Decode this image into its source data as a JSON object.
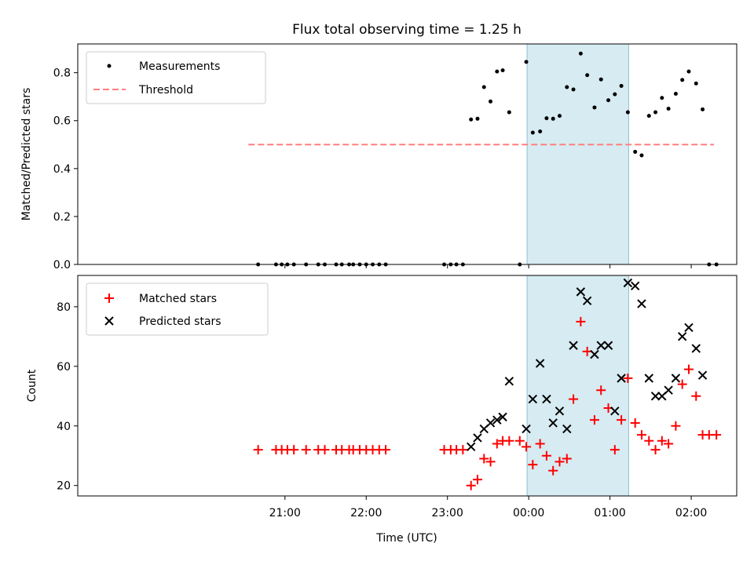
{
  "title": "Flux total observing time = 1.25 h",
  "colors": {
    "measurement": "#000000",
    "threshold": "#ff7f7f",
    "matched": "#ff0000",
    "predicted": "#000000",
    "span": "#add8e6"
  },
  "chart_data": [
    {
      "type": "scatter",
      "ylabel": "Matched/Predicted stars",
      "ylim": [
        0,
        0.92
      ],
      "xlim": [
        -5.55,
        2.56
      ],
      "yticks": [
        0.0,
        0.2,
        0.4,
        0.6,
        0.8
      ],
      "ytick_labels": [
        "0.0",
        "0.2",
        "0.4",
        "0.6",
        "0.8"
      ],
      "legend": {
        "placement": "upper-left",
        "entries": [
          "Measurements",
          "Threshold"
        ]
      },
      "highlight_span": [
        -0.02,
        1.23
      ],
      "threshold": {
        "value": 0.5,
        "x": [
          -3.45,
          2.28
        ]
      },
      "series": [
        {
          "name": "Measurements",
          "marker": "dot",
          "points": [
            [
              -3.33,
              0
            ],
            [
              -3.11,
              0
            ],
            [
              -3.04,
              0
            ],
            [
              -2.97,
              0
            ],
            [
              -2.89,
              0
            ],
            [
              -2.74,
              0
            ],
            [
              -2.59,
              0
            ],
            [
              -2.51,
              0
            ],
            [
              -2.37,
              0
            ],
            [
              -2.3,
              0
            ],
            [
              -2.21,
              0
            ],
            [
              -2.16,
              0
            ],
            [
              -2.08,
              0
            ],
            [
              -2.0,
              0
            ],
            [
              -1.92,
              0
            ],
            [
              -1.84,
              0
            ],
            [
              -1.76,
              0
            ],
            [
              -1.04,
              0
            ],
            [
              -0.96,
              0
            ],
            [
              -0.89,
              0
            ],
            [
              -0.81,
              0
            ],
            [
              -0.71,
              0.605
            ],
            [
              -0.63,
              0.608
            ],
            [
              -0.55,
              0.74
            ],
            [
              -0.47,
              0.68
            ],
            [
              -0.39,
              0.805
            ],
            [
              -0.32,
              0.81
            ],
            [
              -0.24,
              0.635
            ],
            [
              -0.11,
              0
            ],
            [
              -0.03,
              0.845
            ],
            [
              0.05,
              0.55
            ],
            [
              0.14,
              0.555
            ],
            [
              0.22,
              0.61
            ],
            [
              0.3,
              0.608
            ],
            [
              0.38,
              0.62
            ],
            [
              0.47,
              0.74
            ],
            [
              0.55,
              0.73
            ],
            [
              0.64,
              0.88
            ],
            [
              0.72,
              0.79
            ],
            [
              0.81,
              0.655
            ],
            [
              0.89,
              0.772
            ],
            [
              0.98,
              0.685
            ],
            [
              1.06,
              0.71
            ],
            [
              1.14,
              0.745
            ],
            [
              1.22,
              0.635
            ],
            [
              1.31,
              0.47
            ],
            [
              1.39,
              0.455
            ],
            [
              1.48,
              0.62
            ],
            [
              1.56,
              0.635
            ],
            [
              1.64,
              0.695
            ],
            [
              1.72,
              0.65
            ],
            [
              1.81,
              0.712
            ],
            [
              1.89,
              0.77
            ],
            [
              1.97,
              0.805
            ],
            [
              2.06,
              0.755
            ],
            [
              2.14,
              0.647
            ],
            [
              2.22,
              0
            ],
            [
              2.31,
              0
            ]
          ]
        }
      ]
    },
    {
      "type": "scatter",
      "xlabel": "Time (UTC)",
      "ylabel": "Count",
      "ylim": [
        16.5,
        90.5
      ],
      "xlim": [
        -5.55,
        2.56
      ],
      "yticks": [
        20,
        40,
        60,
        80
      ],
      "ytick_labels": [
        "20",
        "40",
        "60",
        "80"
      ],
      "xticks": [
        -3,
        -2,
        -1,
        0,
        1,
        2
      ],
      "xtick_labels": [
        "21:00",
        "22:00",
        "23:00",
        "00:00",
        "01:00",
        "02:00"
      ],
      "legend": {
        "placement": "upper-left",
        "entries": [
          "Matched stars",
          "Predicted stars"
        ]
      },
      "highlight_span": [
        -0.02,
        1.23
      ],
      "series": [
        {
          "name": "Matched stars",
          "marker": "plus",
          "points": [
            [
              -3.33,
              32
            ],
            [
              -3.11,
              32
            ],
            [
              -3.04,
              32
            ],
            [
              -2.97,
              32
            ],
            [
              -2.89,
              32
            ],
            [
              -2.74,
              32
            ],
            [
              -2.59,
              32
            ],
            [
              -2.51,
              32
            ],
            [
              -2.37,
              32
            ],
            [
              -2.3,
              32
            ],
            [
              -2.21,
              32
            ],
            [
              -2.16,
              32
            ],
            [
              -2.08,
              32
            ],
            [
              -2.0,
              32
            ],
            [
              -1.92,
              32
            ],
            [
              -1.84,
              32
            ],
            [
              -1.76,
              32
            ],
            [
              -1.04,
              32
            ],
            [
              -0.96,
              32
            ],
            [
              -0.89,
              32
            ],
            [
              -0.81,
              32
            ],
            [
              -0.71,
              20
            ],
            [
              -0.63,
              22
            ],
            [
              -0.55,
              29
            ],
            [
              -0.47,
              28
            ],
            [
              -0.39,
              34
            ],
            [
              -0.32,
              35
            ],
            [
              -0.24,
              35
            ],
            [
              -0.11,
              35
            ],
            [
              -0.03,
              33
            ],
            [
              0.05,
              27
            ],
            [
              0.14,
              34
            ],
            [
              0.22,
              30
            ],
            [
              0.3,
              25
            ],
            [
              0.38,
              28
            ],
            [
              0.47,
              29
            ],
            [
              0.55,
              49
            ],
            [
              0.64,
              75
            ],
            [
              0.72,
              65
            ],
            [
              0.81,
              42
            ],
            [
              0.89,
              52
            ],
            [
              0.98,
              46
            ],
            [
              1.06,
              32
            ],
            [
              1.14,
              42
            ],
            [
              1.22,
              56
            ],
            [
              1.31,
              41
            ],
            [
              1.39,
              37
            ],
            [
              1.48,
              35
            ],
            [
              1.56,
              32
            ],
            [
              1.64,
              35
            ],
            [
              1.72,
              34
            ],
            [
              1.81,
              40
            ],
            [
              1.89,
              54
            ],
            [
              1.97,
              59
            ],
            [
              2.06,
              50
            ],
            [
              2.14,
              37
            ],
            [
              2.22,
              37
            ],
            [
              2.31,
              37
            ]
          ]
        },
        {
          "name": "Predicted stars",
          "marker": "x",
          "points": [
            [
              -0.71,
              33
            ],
            [
              -0.63,
              36
            ],
            [
              -0.55,
              39
            ],
            [
              -0.47,
              41
            ],
            [
              -0.39,
              42
            ],
            [
              -0.32,
              43
            ],
            [
              -0.24,
              55
            ],
            [
              -0.03,
              39
            ],
            [
              0.05,
              49
            ],
            [
              0.14,
              61
            ],
            [
              0.22,
              49
            ],
            [
              0.3,
              41
            ],
            [
              0.38,
              45
            ],
            [
              0.47,
              39
            ],
            [
              0.55,
              67
            ],
            [
              0.64,
              85
            ],
            [
              0.72,
              82
            ],
            [
              0.81,
              64
            ],
            [
              0.89,
              67
            ],
            [
              0.98,
              67
            ],
            [
              1.06,
              45
            ],
            [
              1.14,
              56
            ],
            [
              1.22,
              88
            ],
            [
              1.31,
              87
            ],
            [
              1.39,
              81
            ],
            [
              1.48,
              56
            ],
            [
              1.56,
              50
            ],
            [
              1.64,
              50
            ],
            [
              1.72,
              52
            ],
            [
              1.81,
              56
            ],
            [
              1.89,
              70
            ],
            [
              1.97,
              73
            ],
            [
              2.06,
              66
            ],
            [
              2.14,
              57
            ]
          ]
        }
      ]
    }
  ]
}
